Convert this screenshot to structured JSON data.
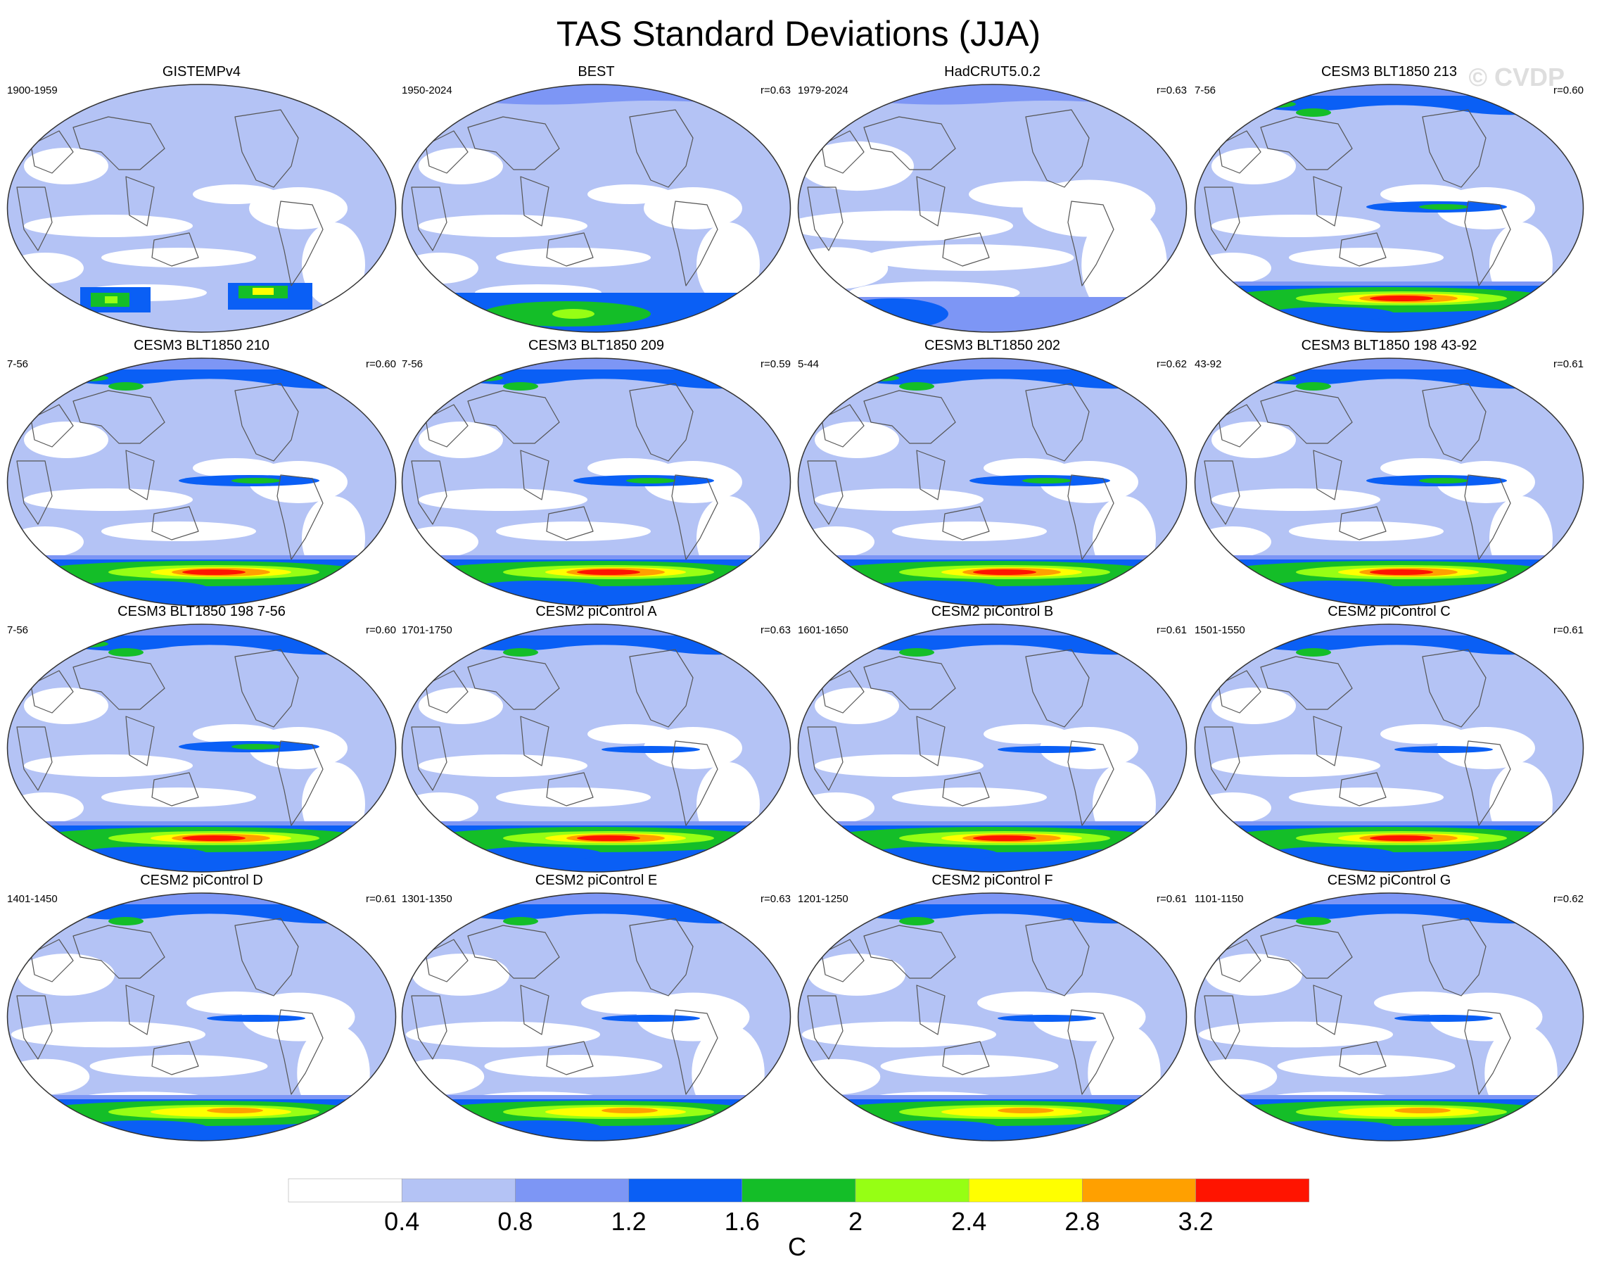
{
  "figure": {
    "title": "TAS Standard Deviations (JJA)",
    "watermark": "© CVDP"
  },
  "panels": [
    {
      "title": "GISTEMPv4",
      "years": "1900-1959",
      "correlation": "",
      "variant": "obs_sparse"
    },
    {
      "title": "BEST",
      "years": "1950-2024",
      "correlation": "r=0.63",
      "variant": "obs"
    },
    {
      "title": "HadCRUT5.0.2",
      "years": "1979-2024",
      "correlation": "r=0.63",
      "variant": "obs_light"
    },
    {
      "title": "CESM3 BLT1850 213",
      "years": "7-56",
      "correlation": "r=0.60",
      "variant": "model_strong"
    },
    {
      "title": "CESM3 BLT1850 210",
      "years": "7-56",
      "correlation": "r=0.60",
      "variant": "model_strong"
    },
    {
      "title": "CESM3 BLT1850 209",
      "years": "7-56",
      "correlation": "r=0.59",
      "variant": "model_strong"
    },
    {
      "title": "CESM3 BLT1850 202",
      "years": "5-44",
      "correlation": "r=0.62",
      "variant": "model_strong"
    },
    {
      "title": "CESM3 BLT1850 198 43-92",
      "years": "43-92",
      "correlation": "r=0.61",
      "variant": "model_strong"
    },
    {
      "title": "CESM3 BLT1850 198 7-56",
      "years": "7-56",
      "correlation": "r=0.60",
      "variant": "model_strong"
    },
    {
      "title": "CESM2 piControl A",
      "years": "1701-1750",
      "correlation": "r=0.63",
      "variant": "model"
    },
    {
      "title": "CESM2 piControl B",
      "years": "1601-1650",
      "correlation": "r=0.61",
      "variant": "model"
    },
    {
      "title": "CESM2 piControl C",
      "years": "1501-1550",
      "correlation": "r=0.61",
      "variant": "model"
    },
    {
      "title": "CESM2 piControl D",
      "years": "1401-1450",
      "correlation": "r=0.61",
      "variant": "model_weak"
    },
    {
      "title": "CESM2 piControl E",
      "years": "1301-1350",
      "correlation": "r=0.63",
      "variant": "model_weak"
    },
    {
      "title": "CESM2 piControl F",
      "years": "1201-1250",
      "correlation": "r=0.61",
      "variant": "model_weak"
    },
    {
      "title": "CESM2 piControl G",
      "years": "1101-1150",
      "correlation": "r=0.62",
      "variant": "model_weak"
    }
  ],
  "colorbar": {
    "units": "C",
    "boundaries": [
      "0.4",
      "0.8",
      "1.2",
      "1.6",
      "2",
      "2.4",
      "2.8",
      "3.2"
    ],
    "colors": [
      "#ffffff",
      "#b4c3f5",
      "#7d96f5",
      "#0a5ff5",
      "#14be28",
      "#96ff14",
      "#ffff00",
      "#ffa000",
      "#ff1400"
    ]
  },
  "palette": {
    "coastline": "#555555",
    "border": "#333333"
  }
}
